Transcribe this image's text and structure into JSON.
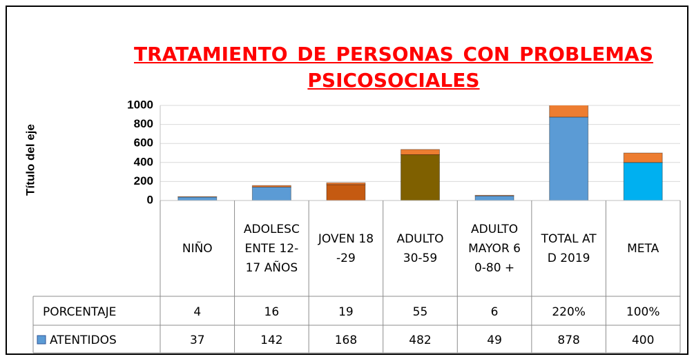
{
  "chart_data": {
    "type": "bar",
    "stacked": true,
    "title": "TRATAMIENTO DE PERSONAS CON PROBLEMAS PSICOSOCIALES",
    "y_label": "Título del eje",
    "categories": [
      "NIÑO",
      "ADOLESCENTE 12-17 AÑOS",
      "JOVEN 18-29",
      "ADULTO 30-59",
      "ADULTO MAYOR 60-80 +",
      "TOTAL ATD 2019",
      "META"
    ],
    "series": [
      {
        "name": "ATENTIDOS",
        "color": "#5b9bd5",
        "point_colors": [
          "#5b9bd5",
          "#5b9bd5",
          "#c55a11",
          "#7f6000",
          "#5b9bd5",
          "#5b9bd5",
          "#00b0f0"
        ],
        "values": [
          37,
          142,
          168,
          482,
          49,
          878,
          400
        ]
      },
      {
        "name": "PORCENTAJE",
        "color": "#ed7d31",
        "values": [
          4,
          16,
          19,
          55,
          6,
          220,
          100
        ],
        "value_labels": [
          null,
          null,
          null,
          null,
          null,
          "220%",
          "100%"
        ]
      }
    ],
    "ylim": [
      0,
      1000
    ],
    "yticks": [
      0,
      200,
      400,
      600,
      800,
      1000
    ],
    "grid": true
  }
}
